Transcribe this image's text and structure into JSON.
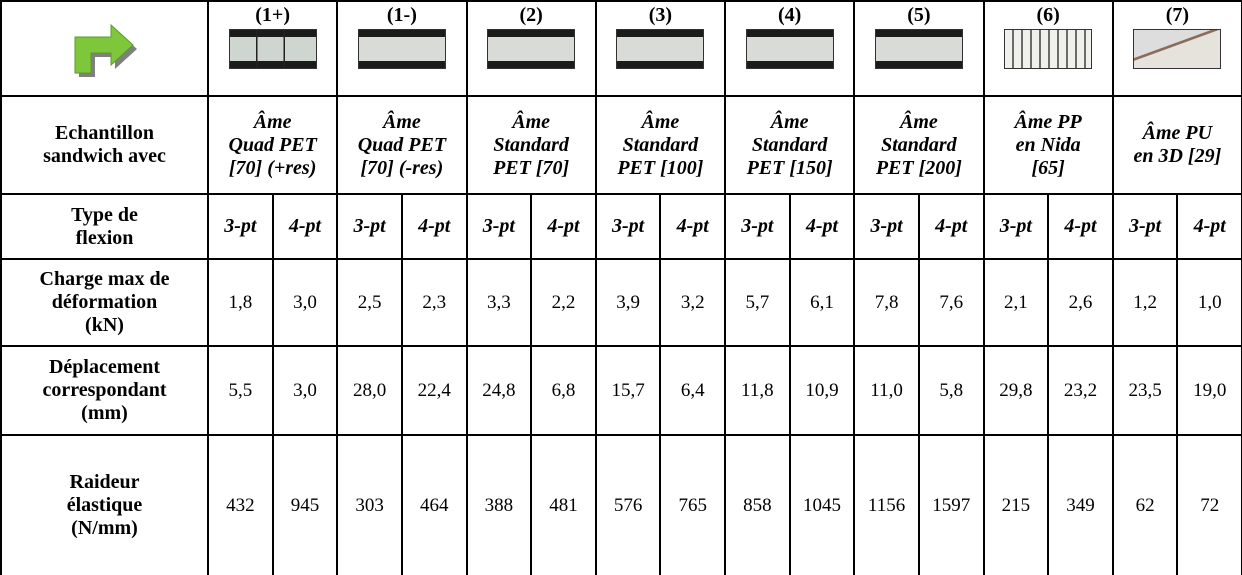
{
  "table": {
    "group_labels": [
      "(1+)",
      "(1-)",
      "(2)",
      "(3)",
      "(4)",
      "(5)",
      "(6)",
      "(7)"
    ],
    "rows": [
      {
        "label": [
          "Echantillon",
          "sandwich avec"
        ],
        "cells": [
          [
            "Âme",
            "Quad PET",
            "[70] (+res)"
          ],
          [
            "Âme",
            "Quad PET",
            "[70] (-res)"
          ],
          [
            "Âme",
            "Standard",
            "PET [70]"
          ],
          [
            "Âme",
            "Standard",
            "PET [100]"
          ],
          [
            "Âme",
            "Standard",
            "PET [150]"
          ],
          [
            "Âme",
            "Standard",
            "PET [200]"
          ],
          [
            "Âme PP",
            "en Nida",
            "[65]"
          ],
          [
            "Âme PU",
            "en 3D [29]"
          ]
        ]
      },
      {
        "label": [
          "Type de",
          "flexion"
        ],
        "cells": [
          "3-pt",
          "4-pt",
          "3-pt",
          "4-pt",
          "3-pt",
          "4-pt",
          "3-pt",
          "4-pt",
          "3-pt",
          "4-pt",
          "3-pt",
          "4-pt",
          "3-pt",
          "4-pt",
          "3-pt",
          "4-pt"
        ]
      },
      {
        "label": [
          "Charge max de",
          "déformation",
          "(kN)"
        ],
        "cells": [
          "1,8",
          "3,0",
          "2,5",
          "2,3",
          "3,3",
          "2,2",
          "3,9",
          "3,2",
          "5,7",
          "6,1",
          "7,8",
          "7,6",
          "2,1",
          "2,6",
          "1,2",
          "1,0"
        ]
      },
      {
        "label": [
          "Déplacement",
          "correspondant",
          "(mm)"
        ],
        "cells": [
          "5,5",
          "3,0",
          "28,0",
          "22,4",
          "24,8",
          "6,8",
          "15,7",
          "6,4",
          "11,8",
          "10,9",
          "11,0",
          "5,8",
          "29,8",
          "23,2",
          "23,5",
          "19,0"
        ]
      },
      {
        "label": [
          "Raideur",
          "élastique",
          "(N/mm)"
        ],
        "cells": [
          "432",
          "945",
          "303",
          "464",
          "388",
          "481",
          "576",
          "765",
          "858",
          "1045",
          "1156",
          "1597",
          "215",
          "349",
          "62",
          "72"
        ]
      }
    ]
  }
}
